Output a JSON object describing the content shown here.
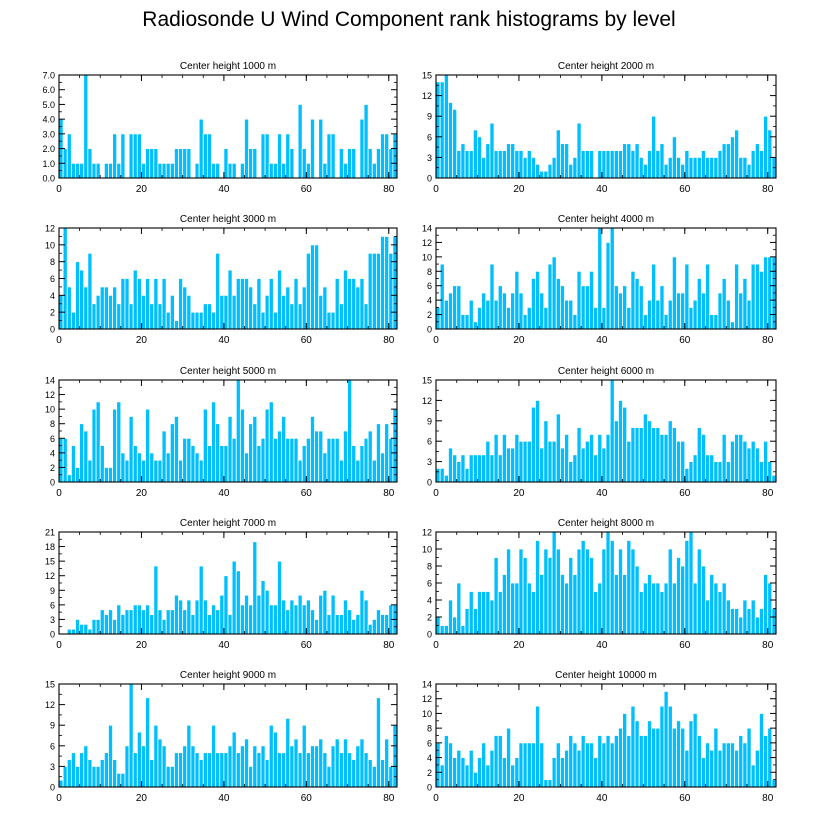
{
  "figure": {
    "title": "Radiosonde U Wind Component rank histograms by level",
    "bar_color": "#00bfff",
    "bar_edge": "#ffffff",
    "axis_color": "#000000"
  },
  "chart_data": [
    {
      "type": "bar",
      "title": "Center height 1000 m",
      "x_ticks": [
        0,
        20,
        40,
        60,
        80
      ],
      "y_ticks": [
        "0.0",
        "1.0",
        "2.0",
        "3.0",
        "4.0",
        "5.0",
        "6.0",
        "7.0"
      ],
      "ylim": [
        0,
        7
      ],
      "xlim": [
        0,
        82
      ],
      "values": [
        4,
        2,
        3,
        1,
        1,
        1,
        7,
        2,
        1,
        1,
        0,
        1,
        1,
        3,
        1,
        3,
        0,
        3,
        3,
        3,
        1,
        2,
        2,
        2,
        1,
        1,
        1,
        1,
        2,
        2,
        2,
        2,
        0,
        1,
        4,
        3,
        3,
        1,
        1,
        0,
        2,
        1,
        1,
        0,
        1,
        4,
        2,
        2,
        0,
        3,
        3,
        1,
        1,
        3,
        1,
        3,
        2,
        0,
        5,
        2,
        1,
        4,
        0,
        4,
        1,
        3,
        3,
        0,
        2,
        1,
        2,
        2,
        0,
        4,
        5,
        2,
        1,
        2,
        3,
        3,
        2,
        3
      ]
    },
    {
      "type": "bar",
      "title": "Center height 2000 m",
      "x_ticks": [
        0,
        20,
        40,
        60,
        80
      ],
      "y_ticks": [
        "0",
        "3",
        "6",
        "9",
        "12",
        "15"
      ],
      "ylim": [
        0,
        15
      ],
      "xlim": [
        0,
        82
      ],
      "values": [
        14,
        14,
        15,
        11,
        10,
        4,
        5,
        4,
        4,
        7,
        6,
        3,
        5,
        8,
        4,
        4,
        4,
        5,
        5,
        4,
        4,
        3,
        4,
        3,
        2,
        1,
        1,
        2,
        3,
        7,
        5,
        5,
        2,
        3,
        8,
        4,
        4,
        4,
        0,
        4,
        4,
        4,
        4,
        4,
        4,
        5,
        5,
        4,
        5,
        3,
        2,
        4,
        9,
        4,
        5,
        2,
        3,
        6,
        3,
        2,
        4,
        3,
        3,
        3,
        4,
        3,
        3,
        3,
        4,
        5,
        5,
        6,
        7,
        3,
        3,
        2,
        4,
        5,
        4,
        9,
        7,
        3
      ]
    },
    {
      "type": "bar",
      "title": "Center height 3000 m",
      "x_ticks": [
        0,
        20,
        40,
        60,
        80
      ],
      "y_ticks": [
        "0",
        "2",
        "4",
        "6",
        "8",
        "10",
        "12"
      ],
      "ylim": [
        0,
        12
      ],
      "xlim": [
        0,
        82
      ],
      "values": [
        4,
        12,
        5,
        2,
        8,
        7,
        5,
        9,
        3,
        4,
        5,
        5,
        4,
        5,
        3,
        6,
        6,
        3,
        7,
        6,
        4,
        6,
        3,
        6,
        3,
        6,
        2,
        4,
        1,
        6,
        5,
        4,
        2,
        2,
        2,
        3,
        3,
        2,
        9,
        4,
        4,
        7,
        4,
        6,
        6,
        6,
        5,
        3,
        6,
        2,
        4,
        6,
        2,
        7,
        4,
        5,
        3,
        6,
        3,
        5,
        9,
        10,
        10,
        4,
        5,
        2,
        2,
        6,
        3,
        7,
        6,
        6,
        5,
        6,
        3,
        9,
        9,
        9,
        11,
        11,
        9,
        11
      ]
    },
    {
      "type": "bar",
      "title": "Center height 4000 m",
      "x_ticks": [
        0,
        20,
        40,
        60,
        80
      ],
      "y_ticks": [
        "0",
        "2",
        "4",
        "6",
        "8",
        "10",
        "12",
        "14"
      ],
      "ylim": [
        0,
        14
      ],
      "xlim": [
        0,
        82
      ],
      "values": [
        3,
        9,
        4,
        5,
        6,
        6,
        2,
        2,
        4,
        1,
        3,
        5,
        4,
        9,
        4,
        6,
        5,
        3,
        5,
        8,
        5,
        2,
        3,
        7,
        8,
        5,
        3,
        9,
        10,
        7,
        6,
        4,
        4,
        2,
        8,
        6,
        6,
        8,
        3,
        14,
        3,
        12,
        14,
        6,
        5,
        6,
        3,
        8,
        7,
        6,
        2,
        4,
        9,
        4,
        6,
        2,
        4,
        10,
        5,
        5,
        9,
        3,
        4,
        7,
        5,
        9,
        2,
        2,
        5,
        7,
        4,
        1,
        9,
        5,
        7,
        4,
        9,
        9,
        8,
        10,
        10,
        10
      ]
    },
    {
      "type": "bar",
      "title": "Center height 5000 m",
      "x_ticks": [
        0,
        20,
        40,
        60,
        80
      ],
      "y_ticks": [
        "0",
        "2",
        "4",
        "6",
        "8",
        "10",
        "12",
        "14"
      ],
      "ylim": [
        0,
        14
      ],
      "xlim": [
        0,
        82
      ],
      "values": [
        6,
        6,
        1,
        5,
        2,
        8,
        7,
        3,
        10,
        11,
        5,
        2,
        2,
        10,
        11,
        4,
        3,
        9,
        5,
        4,
        3,
        10,
        4,
        3,
        3,
        7,
        4,
        8,
        9,
        3,
        6,
        6,
        5,
        4,
        3,
        10,
        5,
        11,
        8,
        5,
        5,
        9,
        6,
        14,
        10,
        4,
        8,
        9,
        5,
        6,
        10,
        11,
        6,
        7,
        9,
        6,
        6,
        6,
        3,
        5,
        6,
        9,
        7,
        7,
        4,
        6,
        6,
        6,
        3,
        7,
        14,
        5,
        3,
        5,
        6,
        7,
        3,
        8,
        4,
        8,
        6,
        10
      ]
    },
    {
      "type": "bar",
      "title": "Center height 6000 m",
      "x_ticks": [
        0,
        20,
        40,
        60,
        80
      ],
      "y_ticks": [
        "0",
        "3",
        "6",
        "9",
        "12",
        "15"
      ],
      "ylim": [
        0,
        15
      ],
      "xlim": [
        0,
        82
      ],
      "values": [
        2,
        2,
        1,
        5,
        4,
        3,
        4,
        2,
        4,
        4,
        4,
        4,
        6,
        4,
        7,
        4,
        7,
        5,
        5,
        7,
        6,
        6,
        6,
        11,
        12,
        5,
        9,
        6,
        6,
        10,
        5,
        7,
        3,
        4,
        8,
        5,
        6,
        7,
        4,
        7,
        5,
        7,
        15,
        9,
        12,
        11,
        6,
        8,
        8,
        8,
        10,
        9,
        8,
        8,
        7,
        7,
        9,
        8,
        6,
        6,
        2,
        3,
        4,
        8,
        7,
        4,
        4,
        3,
        3,
        7,
        3,
        6,
        7,
        7,
        6,
        5,
        6,
        5,
        3,
        6,
        3,
        1
      ]
    },
    {
      "type": "bar",
      "title": "Center height 7000 m",
      "x_ticks": [
        0,
        20,
        40,
        60,
        80
      ],
      "y_ticks": [
        "0",
        "3",
        "6",
        "9",
        "12",
        "15",
        "18",
        "21"
      ],
      "ylim": [
        0,
        21
      ],
      "xlim": [
        0,
        82
      ],
      "values": [
        0,
        0,
        1,
        1,
        3,
        2,
        2,
        1,
        3,
        3,
        5,
        4,
        5,
        3,
        6,
        4,
        5,
        5,
        6,
        6,
        5,
        6,
        4,
        14,
        5,
        3,
        5,
        5,
        8,
        7,
        5,
        7,
        4,
        7,
        14,
        7,
        4,
        6,
        5,
        8,
        12,
        4,
        15,
        13,
        6,
        8,
        6,
        19,
        8,
        11,
        9,
        6,
        6,
        15,
        7,
        5,
        7,
        6,
        8,
        6,
        7,
        5,
        3,
        8,
        9,
        4,
        8,
        4,
        4,
        7,
        5,
        3,
        4,
        9,
        7,
        2,
        3,
        5,
        4,
        4,
        6,
        6
      ]
    },
    {
      "type": "bar",
      "title": "Center height 8000 m",
      "x_ticks": [
        0,
        20,
        40,
        60,
        80
      ],
      "y_ticks": [
        "0",
        "2",
        "4",
        "6",
        "8",
        "10",
        "12"
      ],
      "ylim": [
        0,
        12
      ],
      "xlim": [
        0,
        82
      ],
      "values": [
        2,
        1,
        1,
        4,
        2,
        6,
        1,
        3,
        5,
        3,
        5,
        5,
        5,
        4,
        9,
        5,
        7,
        10,
        6,
        6,
        10,
        9,
        6,
        5,
        11,
        7,
        10,
        9,
        12,
        10,
        7,
        6,
        9,
        7,
        10,
        11,
        10,
        9,
        5,
        6,
        10,
        12,
        11,
        7,
        10,
        7,
        11,
        10,
        8,
        5,
        6,
        7,
        6,
        6,
        5,
        6,
        10,
        6,
        9,
        8,
        11,
        12,
        6,
        10,
        8,
        4,
        7,
        6,
        5,
        6,
        4,
        3,
        3,
        2,
        4,
        3,
        4,
        2,
        3,
        7,
        6,
        3
      ]
    },
    {
      "type": "bar",
      "title": "Center height 9000 m",
      "x_ticks": [
        0,
        20,
        40,
        60,
        80
      ],
      "y_ticks": [
        "0",
        "3",
        "6",
        "9",
        "12",
        "15"
      ],
      "ylim": [
        0,
        15
      ],
      "xlim": [
        0,
        82
      ],
      "values": [
        1,
        3,
        4,
        5,
        3,
        5,
        6,
        4,
        3,
        3,
        4,
        5,
        9,
        4,
        2,
        2,
        6,
        15,
        5,
        8,
        6,
        13,
        4,
        9,
        7,
        6,
        3,
        3,
        5,
        5,
        6,
        9,
        6,
        5,
        4,
        5,
        5,
        9,
        5,
        5,
        5,
        6,
        8,
        5,
        6,
        7,
        3,
        6,
        5,
        6,
        4,
        9,
        8,
        5,
        5,
        10,
        6,
        7,
        5,
        9,
        5,
        6,
        6,
        7,
        5,
        3,
        6,
        7,
        5,
        7,
        5,
        4,
        6,
        7,
        5,
        4,
        3,
        13,
        4,
        7,
        3,
        9
      ]
    },
    {
      "type": "bar",
      "title": "Center height 10000 m",
      "x_ticks": [
        0,
        20,
        40,
        60,
        80
      ],
      "y_ticks": [
        "0",
        "2",
        "4",
        "6",
        "8",
        "10",
        "12",
        "14"
      ],
      "ylim": [
        0,
        14
      ],
      "xlim": [
        0,
        82
      ],
      "values": [
        6,
        3,
        7,
        6,
        4,
        5,
        4,
        3,
        5,
        2,
        4,
        6,
        3,
        5,
        7,
        7,
        4,
        8,
        3,
        4,
        6,
        6,
        6,
        6,
        11,
        6,
        1,
        1,
        4,
        6,
        4,
        5,
        7,
        6,
        5,
        7,
        6,
        6,
        4,
        7,
        6,
        7,
        6,
        7,
        8,
        10,
        7,
        11,
        9,
        7,
        7,
        9,
        8,
        8,
        11,
        13,
        11,
        8,
        9,
        8,
        5,
        9,
        10,
        7,
        4,
        6,
        5,
        8,
        5,
        6,
        6,
        6,
        5,
        7,
        6,
        8,
        3,
        5,
        10,
        7,
        8,
        1
      ]
    }
  ]
}
